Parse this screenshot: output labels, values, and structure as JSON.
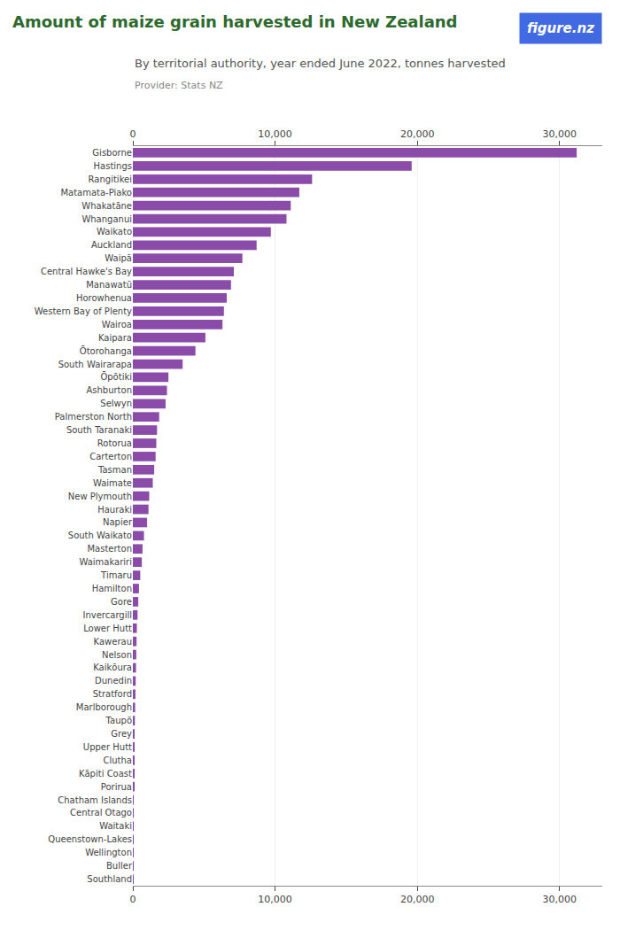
{
  "chart_data": {
    "type": "bar",
    "orientation": "horizontal",
    "title": "Amount of maize grain harvested in New Zealand",
    "subtitle": "By territorial authority, year ended June 2022, tonnes harvested",
    "annotations": [
      "Provider: Stats NZ",
      "figure.nz"
    ],
    "categories": [
      "Gisborne",
      "Hastings",
      "Rangitikei",
      "Matamata-Piako",
      "Whakatāne",
      "Whanganui",
      "Waikato",
      "Auckland",
      "Waipā",
      "Central Hawke's Bay",
      "Manawatū",
      "Horowhenua",
      "Western Bay of Plenty",
      "Wairoa",
      "Kaipara",
      "Ōtorohanga",
      "South Wairarapa",
      "Ōpōtiki",
      "Ashburton",
      "Selwyn",
      "Palmerston North",
      "South Taranaki",
      "Rotorua",
      "Carterton",
      "Tasman",
      "Waimate",
      "New Plymouth",
      "Hauraki",
      "Napier",
      "South Waikato",
      "Masterton",
      "Waimakariri",
      "Timaru",
      "Hamilton",
      "Gore",
      "Invercargill",
      "Lower Hutt",
      "Kawerau",
      "Nelson",
      "Kaikōura",
      "Dunedin",
      "Stratford",
      "Marlborough",
      "Taupō",
      "Grey",
      "Upper Hutt",
      "Clutha",
      "Kāpiti Coast",
      "Porirua",
      "Chatham Islands",
      "Central Otago",
      "Waitaki",
      "Queenstown-Lakes",
      "Wellington",
      "Buller",
      "Southland"
    ],
    "values": [
      31200,
      19600,
      12600,
      11700,
      11100,
      10800,
      9700,
      8700,
      7700,
      7100,
      6900,
      6600,
      6400,
      6300,
      5100,
      4400,
      3500,
      2500,
      2400,
      2300,
      1850,
      1700,
      1650,
      1600,
      1500,
      1400,
      1150,
      1100,
      1000,
      780,
      680,
      630,
      520,
      430,
      380,
      330,
      280,
      260,
      240,
      220,
      200,
      180,
      160,
      140,
      120,
      100,
      90,
      80,
      70,
      60,
      55,
      45,
      35,
      25,
      15,
      8
    ],
    "color": "#8B4BA8",
    "xlim": [
      0,
      33000
    ],
    "xticks": [
      0,
      {
        "value": 10000,
        "label": "10,000"
      },
      {
        "value": 20000,
        "label": "20,000"
      },
      {
        "value": 30000,
        "label": "30,000"
      }
    ],
    "grid": true
  }
}
